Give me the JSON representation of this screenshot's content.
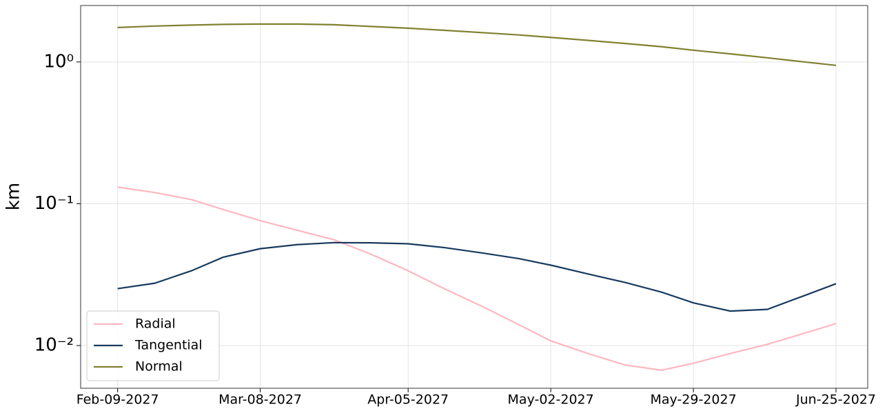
{
  "chart_data": {
    "type": "line",
    "ylabel": "km",
    "log_y": true,
    "grid": true,
    "legend": "lower left",
    "x": [
      "2027-02-09",
      "2027-02-16",
      "2027-02-23",
      "2027-03-01",
      "2027-03-08",
      "2027-03-15",
      "2027-03-22",
      "2027-03-29",
      "2027-04-05",
      "2027-04-12",
      "2027-04-19",
      "2027-04-26",
      "2027-05-02",
      "2027-05-09",
      "2027-05-16",
      "2027-05-23",
      "2027-05-29",
      "2027-06-05",
      "2027-06-12",
      "2027-06-19",
      "2027-06-25"
    ],
    "series": [
      {
        "name": "Radial",
        "color": "#ffb6c1",
        "values": [
          0.131,
          0.12,
          0.107,
          0.091,
          0.076,
          0.065,
          0.0557,
          0.044,
          0.0337,
          0.025,
          0.0189,
          0.014,
          0.0108,
          0.0088,
          0.0073,
          0.0067,
          0.0075,
          0.0088,
          0.0102,
          0.0122,
          0.0143
        ]
      },
      {
        "name": "Tangential",
        "color": "#173a5e",
        "values": [
          0.0252,
          0.0275,
          0.0337,
          0.042,
          0.0482,
          0.0515,
          0.0532,
          0.053,
          0.0522,
          0.049,
          0.045,
          0.041,
          0.0369,
          0.032,
          0.0279,
          0.0238,
          0.02,
          0.0175,
          0.018,
          0.0225,
          0.0273
        ]
      },
      {
        "name": "Normal",
        "color": "#808030",
        "values": [
          1.75,
          1.79,
          1.82,
          1.84,
          1.85,
          1.85,
          1.83,
          1.78,
          1.73,
          1.67,
          1.61,
          1.55,
          1.49,
          1.42,
          1.35,
          1.28,
          1.21,
          1.14,
          1.07,
          1.0,
          0.946
        ]
      }
    ],
    "xlim": [
      "2027-02-02",
      "2027-07-01"
    ],
    "xticks": [
      {
        "value": "2027-02-09",
        "label": "Feb-09-2027"
      },
      {
        "value": "2027-03-08",
        "label": "Mar-08-2027"
      },
      {
        "value": "2027-04-05",
        "label": "Apr-05-2027"
      },
      {
        "value": "2027-05-02",
        "label": "May-02-2027"
      },
      {
        "value": "2027-05-29",
        "label": "May-29-2027"
      },
      {
        "value": "2027-06-25",
        "label": "Jun-25-2027"
      }
    ],
    "ylim": [
      0.005,
      2.5
    ],
    "yticks": [
      {
        "value": 0.01,
        "label": "10⁻²"
      },
      {
        "value": 0.1,
        "label": "10⁻¹"
      },
      {
        "value": 1,
        "label": "10⁰"
      }
    ]
  }
}
